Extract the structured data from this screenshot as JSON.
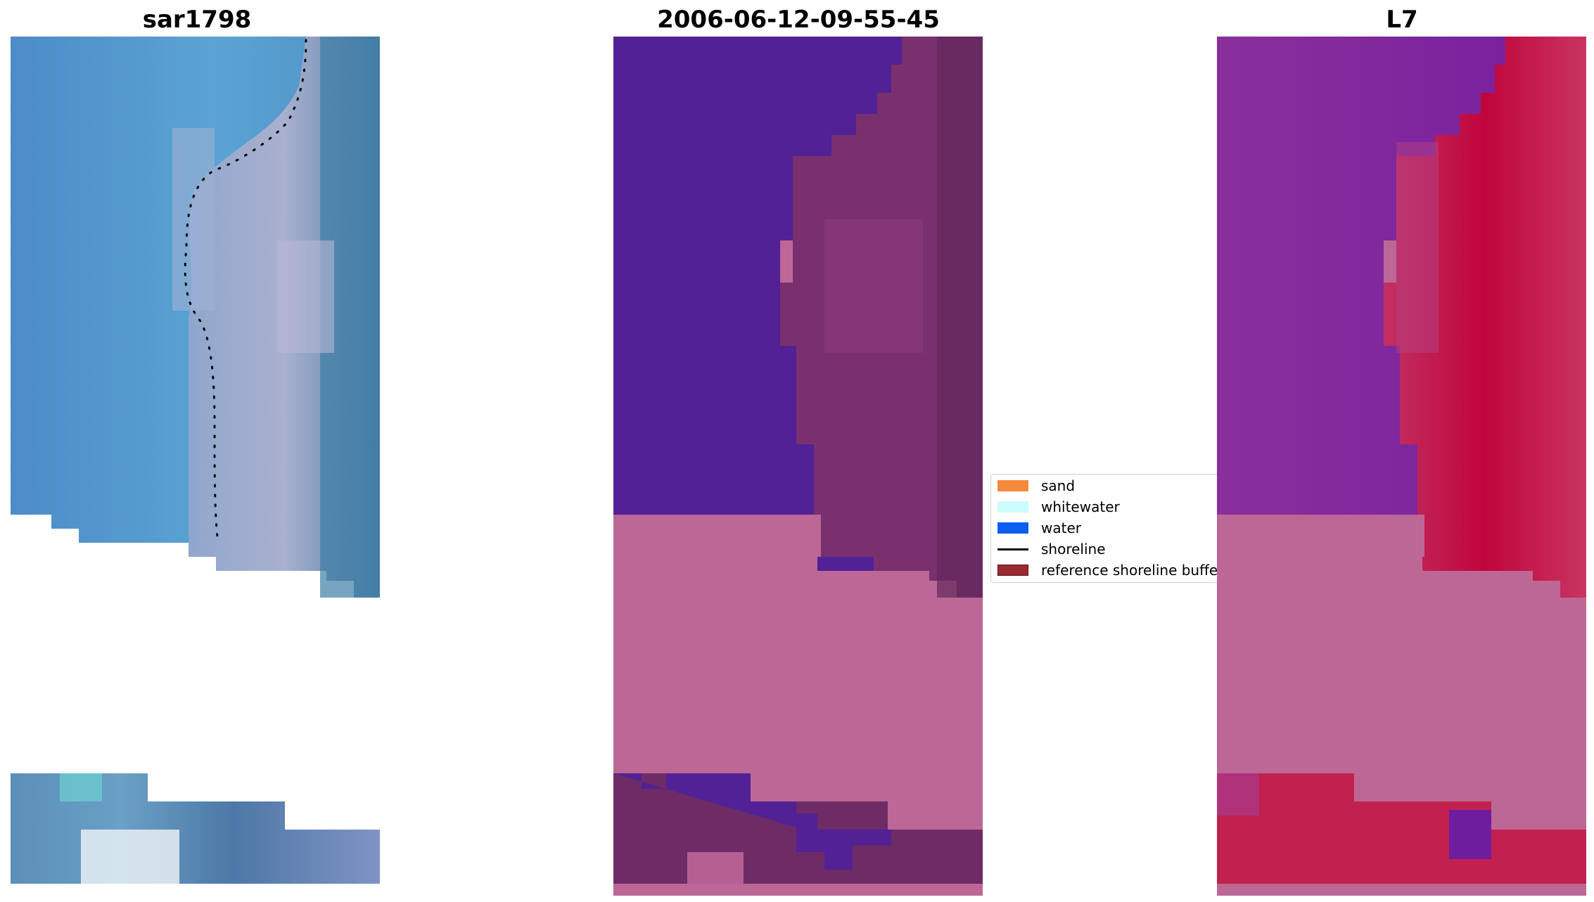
{
  "panels": [
    {
      "title": "sar1798"
    },
    {
      "title": "2006-06-12-09-55-45"
    },
    {
      "title": "L7"
    }
  ],
  "legend": {
    "items": [
      {
        "label": "sand",
        "color": "#f58a3d",
        "kind": "patch"
      },
      {
        "label": "whitewater",
        "color": "#ccfbfb",
        "kind": "patch"
      },
      {
        "label": "water",
        "color": "#0a5ef2",
        "kind": "patch"
      },
      {
        "label": "shoreline",
        "color": "#000000",
        "kind": "line"
      },
      {
        "label": "reference shoreline buffer",
        "color": "#9c2a33",
        "kind": "patch"
      }
    ]
  },
  "colors": {
    "water_class": "#522196",
    "buffer_overlay": "#bc6795",
    "land_class": "#6e2b66"
  }
}
